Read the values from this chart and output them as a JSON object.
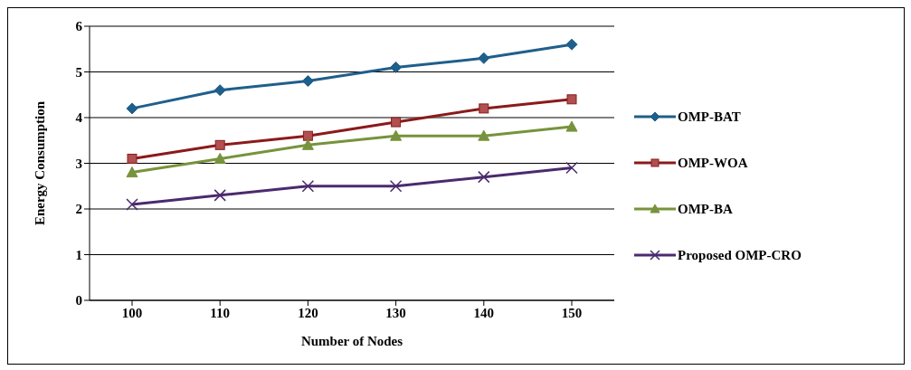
{
  "chart_data": {
    "type": "line",
    "xlabel": "Number of Nodes",
    "ylabel": "Energy Consumption",
    "categories": [
      "100",
      "110",
      "120",
      "130",
      "140",
      "150"
    ],
    "ylim": [
      0,
      6
    ],
    "yticks": [
      0,
      1,
      2,
      3,
      4,
      5,
      6
    ],
    "grid": "y",
    "legend": "right",
    "line_style": "solid",
    "series": [
      {
        "name": "OMP-BAT",
        "color": "#1f5f8b",
        "marker": "diamond",
        "values": [
          4.2,
          4.6,
          4.8,
          5.1,
          5.3,
          5.6
        ]
      },
      {
        "name": "OMP-WOA",
        "color": "#8b1a1a",
        "marker": "square",
        "values": [
          3.1,
          3.4,
          3.6,
          3.9,
          4.2,
          4.4
        ]
      },
      {
        "name": "OMP-BA",
        "color": "#77933c",
        "marker": "triangle",
        "values": [
          2.8,
          3.1,
          3.4,
          3.6,
          3.6,
          3.8
        ]
      },
      {
        "name": "Proposed OMP-CRO",
        "color": "#4b2a6e",
        "marker": "cross",
        "values": [
          2.1,
          2.3,
          2.5,
          2.5,
          2.7,
          2.9
        ]
      }
    ]
  }
}
